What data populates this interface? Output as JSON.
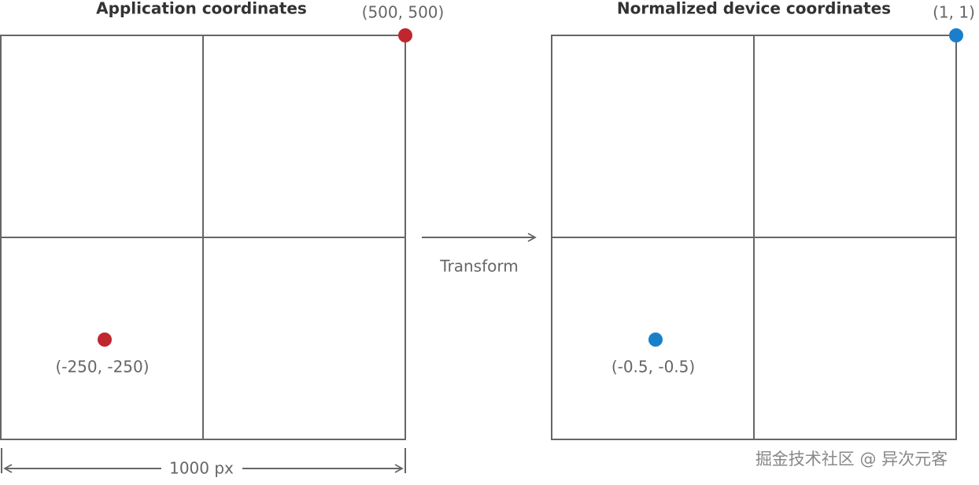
{
  "left_panel": {
    "title": "Application coordinates",
    "corner_label": "(500, 500)",
    "point_label": "(-250, -250)"
  },
  "right_panel": {
    "title": "Normalized device coordinates",
    "corner_label": "(1, 1)",
    "point_label": "(-0.5, -0.5)"
  },
  "arrow_label": "Transform",
  "dimension_label": "1000 px",
  "watermark": "掘金技术社区 @ 异次元客"
}
